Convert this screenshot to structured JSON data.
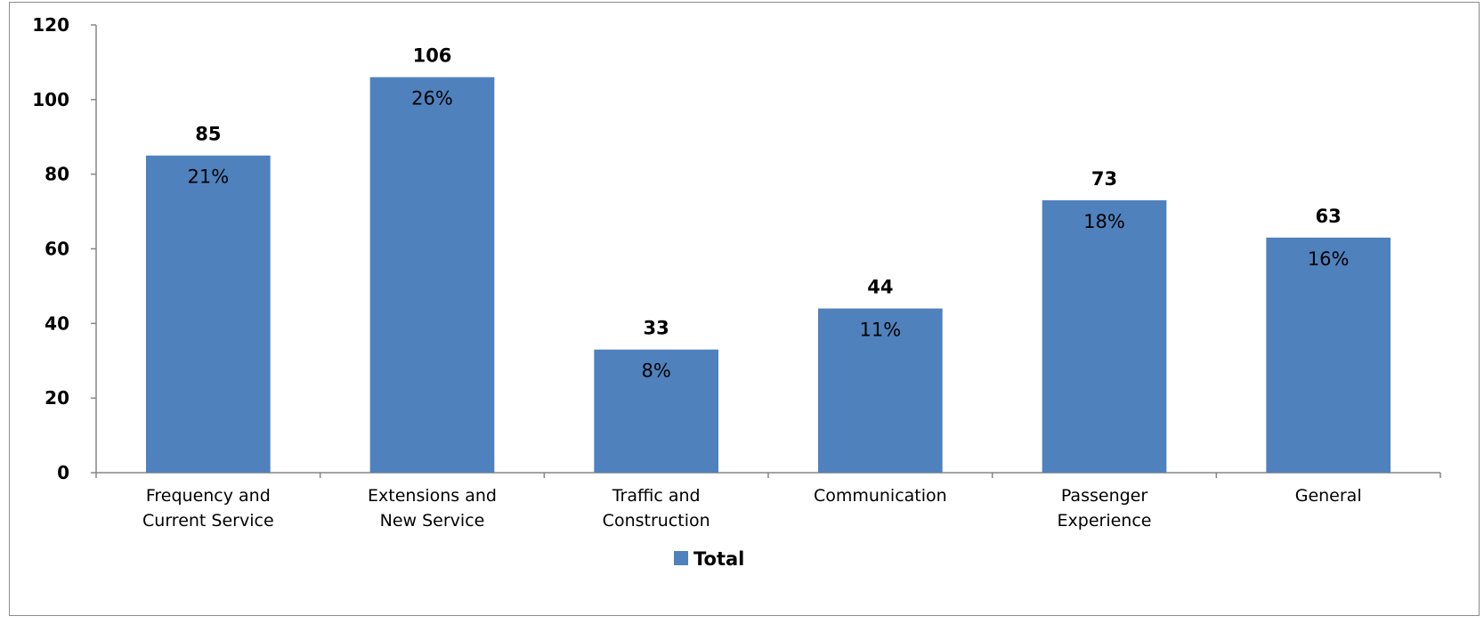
{
  "chart_data": {
    "type": "bar",
    "categories": [
      [
        "Frequency and",
        "Current Service"
      ],
      [
        "Extensions and",
        "New Service"
      ],
      [
        "Traffic and",
        "Construction"
      ],
      [
        "Communication"
      ],
      [
        "Passenger",
        "Experience"
      ],
      [
        "General"
      ]
    ],
    "series": [
      {
        "name": "Total",
        "values": [
          85,
          106,
          33,
          44,
          73,
          63
        ],
        "percent_labels": [
          "21%",
          "26%",
          "8%",
          "11%",
          "18%",
          "16%"
        ]
      }
    ],
    "ylim": [
      0,
      120
    ],
    "yticks": [
      "0",
      "20",
      "40",
      "60",
      "80",
      "100",
      "120"
    ],
    "grid": false,
    "legend_position": "bottom",
    "colors": {
      "bar": "#4f81bd",
      "axis": "#868686"
    }
  }
}
